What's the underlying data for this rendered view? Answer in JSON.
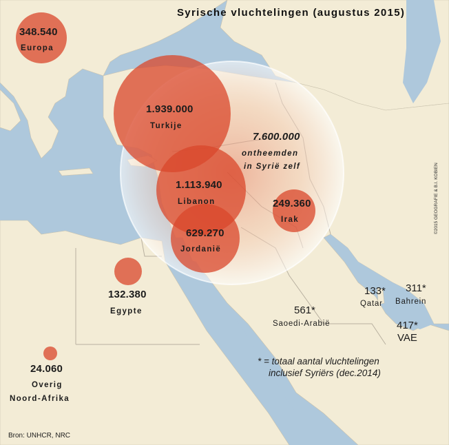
{
  "title": "Syrische vluchtelingen (augustus 2015)",
  "source": "Bron: UNHCR, NRC",
  "copyright": "©2015 GEOGRAFIE & B.I. KOBIEN",
  "idp": {
    "value": "7.600.000",
    "line1": "ontheemden",
    "line2": "in Syrië zelf"
  },
  "regions": [
    {
      "id": "europa",
      "value": "348.540",
      "label": "Europa"
    },
    {
      "id": "turkije",
      "value": "1.939.000",
      "label": "Turkije"
    },
    {
      "id": "libanon",
      "value": "1.113.940",
      "label": "Libanon"
    },
    {
      "id": "jordanie",
      "value": "629.270",
      "label": "Jordanië"
    },
    {
      "id": "irak",
      "value": "249.360",
      "label": "Irak"
    },
    {
      "id": "egypte",
      "value": "132.380",
      "label": "Egypte"
    },
    {
      "id": "noord-afrika",
      "value": "24.060",
      "label": "Overig",
      "label2": "Noord-Afrika"
    }
  ],
  "gulf": [
    {
      "id": "saoedi",
      "value": "561*",
      "label": "Saoedi-Arabië"
    },
    {
      "id": "qatar",
      "value": "133*",
      "label": "Qatar"
    },
    {
      "id": "bahrein",
      "value": "311*",
      "label": "Bahrein"
    },
    {
      "id": "vae",
      "value": "417*",
      "label": "VAE"
    }
  ],
  "footnote": {
    "line1": "* = totaal aantal vluchtelingen",
    "line2": "inclusief Syriërs (dec.2014)"
  },
  "colors": {
    "sea": "#aec8dc",
    "land": "#f3ecd6",
    "bubble": "#d9472b",
    "border": "#b8b0a0"
  }
}
